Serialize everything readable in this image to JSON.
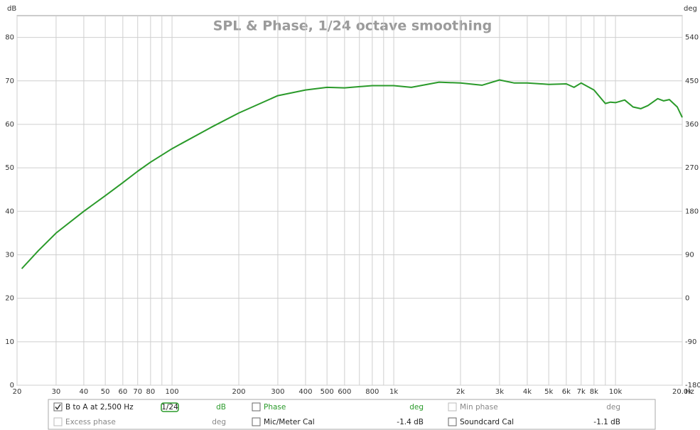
{
  "chart_data": {
    "type": "line",
    "title": "SPL & Phase, 1/24 octave smoothing",
    "y_unit": "dB",
    "y2_unit": "deg",
    "x_unit": "Hz",
    "xscale": "log",
    "grid": true,
    "xlim": [
      20,
      20000
    ],
    "ylim": [
      0,
      85
    ],
    "y2lim": [
      -180,
      585
    ],
    "yticks": [
      0,
      10,
      20,
      30,
      40,
      50,
      60,
      70,
      80
    ],
    "y2ticks": [
      -180,
      -90,
      0,
      90,
      180,
      270,
      360,
      450,
      540
    ],
    "xticks": [
      20,
      30,
      40,
      50,
      60,
      70,
      80,
      100,
      200,
      300,
      400,
      500,
      600,
      800,
      {
        "value": 1000,
        "label": "1k"
      },
      {
        "value": 2000,
        "label": "2k"
      },
      {
        "value": 3000,
        "label": "3k"
      },
      {
        "value": 4000,
        "label": "4k"
      },
      {
        "value": 5000,
        "label": "5k"
      },
      {
        "value": 6000,
        "label": "6k"
      },
      {
        "value": 7000,
        "label": "7k"
      },
      {
        "value": 8000,
        "label": "8k"
      },
      {
        "value": 10000,
        "label": "10k"
      },
      {
        "value": 20000,
        "label": "20.0k"
      }
    ],
    "xminor": [
      90,
      700,
      900,
      9000
    ],
    "series": [
      {
        "name": "B to A at 2,500 Hz",
        "color": "#2a9a2a",
        "x": [
          21,
          25,
          30,
          40,
          50,
          60,
          70,
          80,
          100,
          150,
          200,
          300,
          400,
          500,
          600,
          800,
          1000,
          1200,
          1600,
          2000,
          2500,
          3000,
          3500,
          4000,
          5000,
          6000,
          6500,
          7000,
          8000,
          9000,
          9500,
          10000,
          11000,
          12000,
          13000,
          14000,
          15500,
          16500,
          17500,
          19000,
          20000
        ],
        "values": [
          26.8,
          31,
          35,
          40,
          43.6,
          46.6,
          49.2,
          51.3,
          54.4,
          59.3,
          62.6,
          66.6,
          67.9,
          68.5,
          68.4,
          68.9,
          68.9,
          68.5,
          69.7,
          69.5,
          69.0,
          70.2,
          69.5,
          69.5,
          69.2,
          69.3,
          68.5,
          69.5,
          67.9,
          64.8,
          65.1,
          65.0,
          65.6,
          64.0,
          63.6,
          64.3,
          65.9,
          65.4,
          65.7,
          64.0,
          61.6
        ]
      }
    ]
  },
  "controls": {
    "smoothing": "1/24",
    "trace_unit": "dB",
    "items": [
      {
        "label": "Phase",
        "unit": "deg",
        "checked": false,
        "enabled": true,
        "color": "#2a9a2a"
      },
      {
        "label": "Min phase",
        "unit": "deg",
        "checked": false,
        "enabled": false,
        "color": "#888888"
      },
      {
        "label": "Excess phase",
        "unit": "deg",
        "checked": false,
        "enabled": false,
        "color": "#888888"
      },
      {
        "label": "Mic/Meter Cal",
        "unit": "-1.4 dB",
        "checked": false,
        "enabled": true,
        "color": "#222222"
      },
      {
        "label": "Soundcard Cal",
        "unit": "-1.1 dB",
        "checked": false,
        "enabled": true,
        "color": "#222222"
      }
    ]
  }
}
